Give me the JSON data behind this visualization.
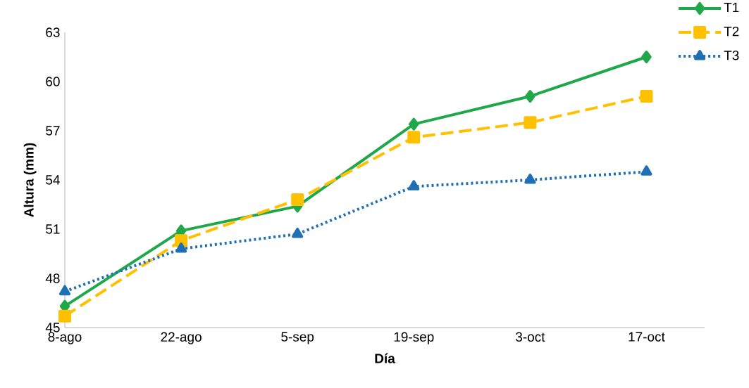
{
  "chart_data": {
    "type": "line",
    "xlabel": "Día",
    "ylabel": "Altura (mm)",
    "categories": [
      "8-ago",
      "22-ago",
      "5-sep",
      "19-sep",
      "3-oct",
      "17-oct"
    ],
    "series": [
      {
        "name": "T1",
        "color": "#1fa84a",
        "marker": "diamond",
        "line_style": "solid",
        "values": [
          46.3,
          50.9,
          52.4,
          57.4,
          59.1,
          61.5
        ]
      },
      {
        "name": "T2",
        "color": "#ffc000",
        "marker": "square",
        "line_style": "dashed",
        "values": [
          45.7,
          50.3,
          52.8,
          56.6,
          57.5,
          59.1
        ]
      },
      {
        "name": "T3",
        "color": "#1f6fb5",
        "marker": "triangle",
        "line_style": "dotted",
        "values": [
          47.2,
          49.8,
          50.7,
          53.6,
          54.0,
          54.5
        ]
      }
    ],
    "ylim": [
      45,
      63
    ],
    "yticks": [
      45,
      48,
      51,
      54,
      57,
      60,
      63
    ],
    "grid": false,
    "legend": "top right"
  }
}
